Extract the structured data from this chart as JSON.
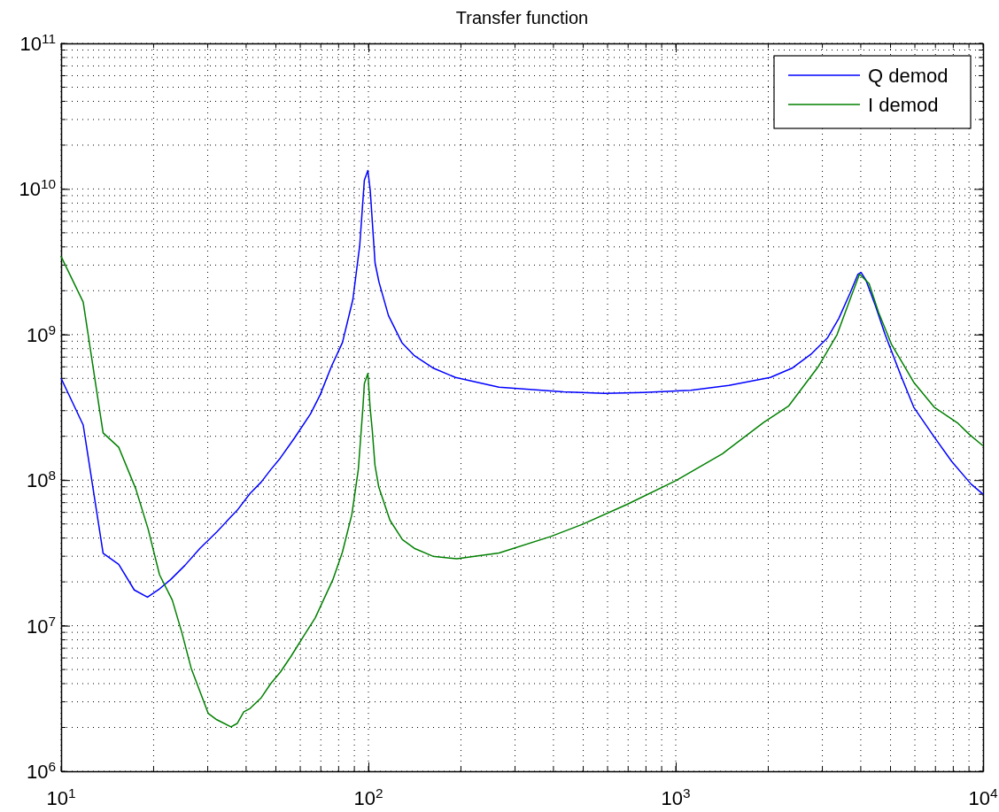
{
  "chart_data": {
    "type": "line",
    "title": "Transfer function",
    "log": "xy",
    "grid": true,
    "legend": "top right",
    "line_style": "solid",
    "marker": "none",
    "xlim": [
      10,
      10000
    ],
    "ylim": [
      1000000,
      100000000000
    ],
    "xticks": [
      {
        "value": 10,
        "label": "10$^{1}$"
      },
      {
        "value": 100,
        "label": "10$^{2}$"
      },
      {
        "value": 1000,
        "label": "10$^{3}$"
      },
      {
        "value": 10000,
        "label": "10$^{4}$"
      }
    ],
    "yticks": [
      {
        "value": 1000000,
        "label": "10$^{6}$"
      },
      {
        "value": 10000000,
        "label": "10$^{7}$"
      },
      {
        "value": 100000000,
        "label": "10$^{8}$"
      },
      {
        "value": 1000000000,
        "label": "10$^{9}$"
      },
      {
        "value": 10000000000,
        "label": "10$^{10}$"
      },
      {
        "value": 100000000000,
        "label": "10$^{11}$"
      }
    ],
    "series": [
      {
        "name": "Q demod",
        "color": "#0000ff",
        "x": [
          10,
          11.8,
          13.7,
          15.4,
          17.3,
          19.1,
          20.9,
          22.7,
          25.3,
          28.3,
          32.1,
          35.7,
          37.4,
          41.2,
          44.8,
          48.1,
          51.7,
          57.5,
          64.8,
          69.6,
          75.7,
          82.3,
          89,
          93.7,
          97,
          99.6,
          101.4,
          105.1,
          108.2,
          116.2,
          128.5,
          140.7,
          162,
          192,
          266,
          431,
          587,
          782,
          1119,
          1489,
          2031,
          2400,
          2770,
          3120,
          3393,
          3690,
          3918,
          4009,
          4159,
          4467,
          4800,
          5408,
          5948,
          6852,
          7912,
          9138,
          10000
        ],
        "values": [
          500000000,
          239000000,
          31400000,
          26400000,
          17600000,
          15700000,
          17900000,
          20700000,
          26000000,
          34000000,
          44000000,
          56000000,
          62000000,
          81000000,
          97000000,
          118000000,
          142000000,
          195000000,
          285000000,
          384000000,
          600000000,
          880000000,
          1740000000,
          4100000000,
          11500000000,
          13400000000,
          9700000000,
          3100000000,
          2300000000,
          1350000000,
          880000000,
          720000000,
          590000000,
          507000000,
          435000000,
          404000000,
          394000000,
          400000000,
          414000000,
          447000000,
          507000000,
          590000000,
          740000000,
          950000000,
          1290000000,
          1920000000,
          2600000000,
          2670000000,
          2360000000,
          1570000000,
          1000000000,
          520000000,
          317000000,
          205000000,
          134000000,
          94000000,
          80000000
        ]
      },
      {
        "name": "I demod",
        "color": "#008000",
        "x": [
          10,
          11.8,
          13.3,
          13.7,
          15.4,
          17.5,
          19.2,
          20.9,
          23,
          24.7,
          26.5,
          30.1,
          32.1,
          35.7,
          37.4,
          39.3,
          41.2,
          44.8,
          48.1,
          51.7,
          56.1,
          61.8,
          67.1,
          76.6,
          82.3,
          88.3,
          92.7,
          96,
          97,
          99.6,
          101.2,
          103,
          105,
          108,
          117.5,
          129,
          141,
          162,
          194,
          266,
          392,
          497,
          693,
          1000,
          1420,
          1935,
          2333,
          2906,
          3350,
          3690,
          3963,
          4256,
          4571,
          5031,
          5948,
          6934,
          8298,
          9025,
          10000
        ],
        "values": [
          3440000000,
          1670000000,
          317000000,
          211000000,
          168000000,
          87000000,
          46000000,
          22400000,
          15000000,
          9000000,
          5100000,
          2500000,
          2260000,
          2020000,
          2130000,
          2560000,
          2700000,
          3200000,
          4000000,
          4800000,
          6200000,
          8600000,
          11300000,
          20700000,
          32000000,
          58000000,
          118000000,
          320000000,
          460000000,
          540000000,
          320000000,
          216000000,
          127000000,
          90000000,
          53000000,
          39000000,
          34000000,
          30000000,
          28800000,
          31600000,
          41000000,
          49700000,
          68000000,
          99000000,
          152000000,
          250000000,
          324000000,
          600000000,
          1000000000,
          1740000000,
          2600000000,
          2240000000,
          1420000000,
          860000000,
          470000000,
          317000000,
          245000000,
          206000000,
          172000000
        ]
      }
    ]
  }
}
